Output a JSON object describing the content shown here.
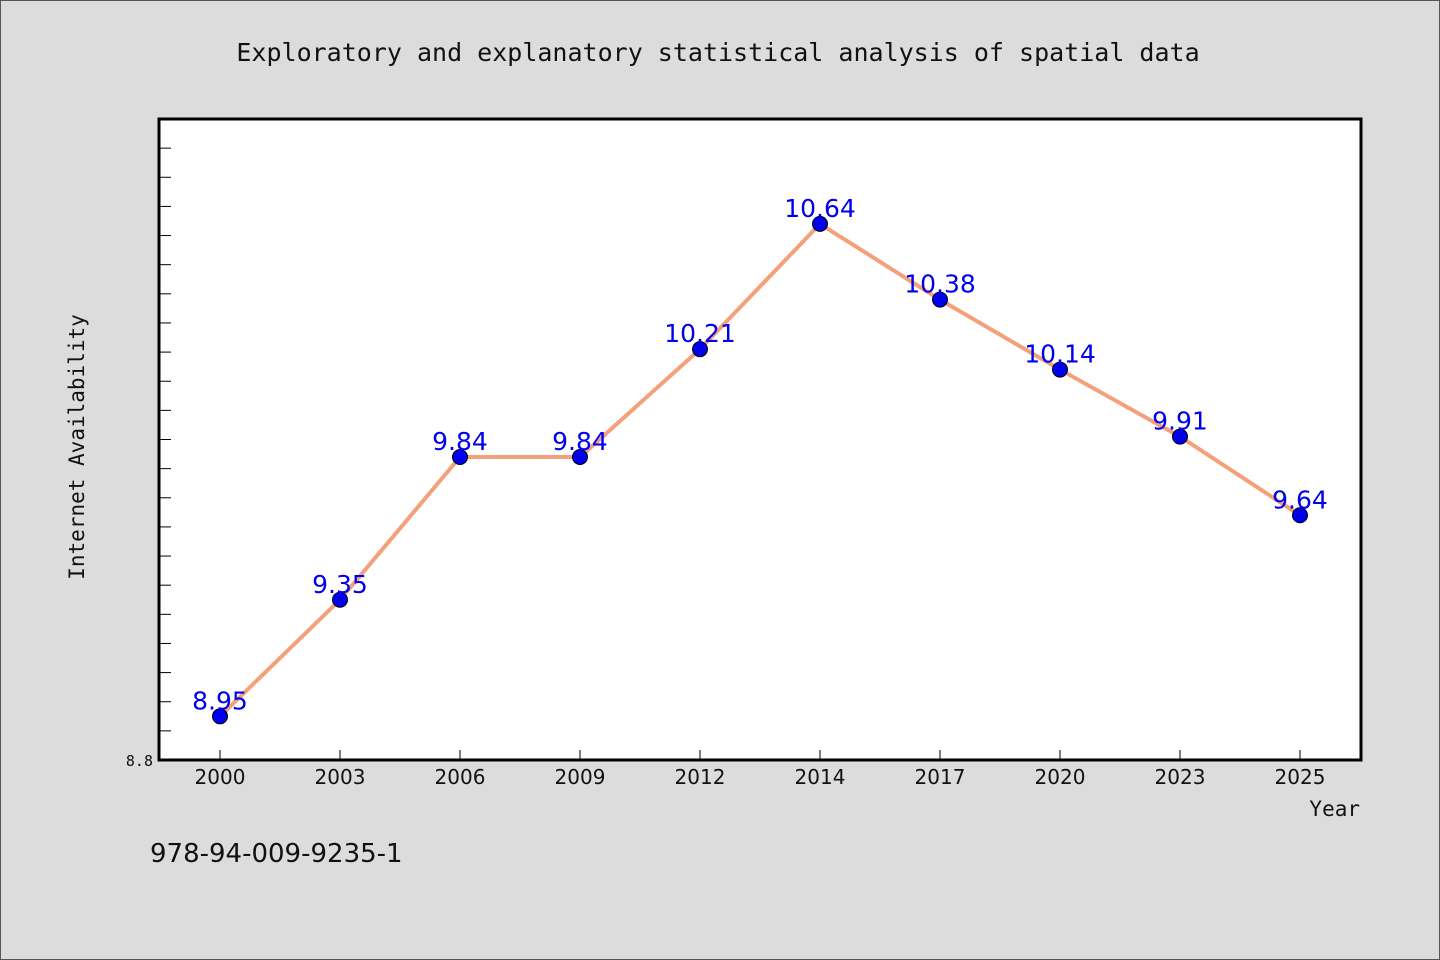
{
  "chart_data": {
    "type": "line",
    "title": "Exploratory and explanatory statistical analysis of spatial data",
    "xlabel": "Year",
    "ylabel": "Internet Availability",
    "categories": [
      "2000",
      "2003",
      "2006",
      "2009",
      "2012",
      "2014",
      "2017",
      "2020",
      "2023",
      "2025"
    ],
    "series": [
      {
        "values": [
          8.95,
          9.35,
          9.84,
          9.84,
          10.21,
          10.64,
          10.38,
          10.14,
          9.91,
          9.64
        ]
      }
    ],
    "data_labels": [
      "8.95",
      "9.35",
      "9.84",
      "9.84",
      "10.21",
      "10.64",
      "10.38",
      "10.14",
      "9.91",
      "9.64"
    ],
    "ylim": [
      8.8,
      11.0
    ],
    "ytick_labels": [
      "8.8"
    ],
    "grid": false,
    "line_color": "#f4a07a",
    "marker_color": "#0000ee",
    "label_color": "#0000ee"
  },
  "footer": {
    "isbn": "978-94-009-9235-1"
  }
}
